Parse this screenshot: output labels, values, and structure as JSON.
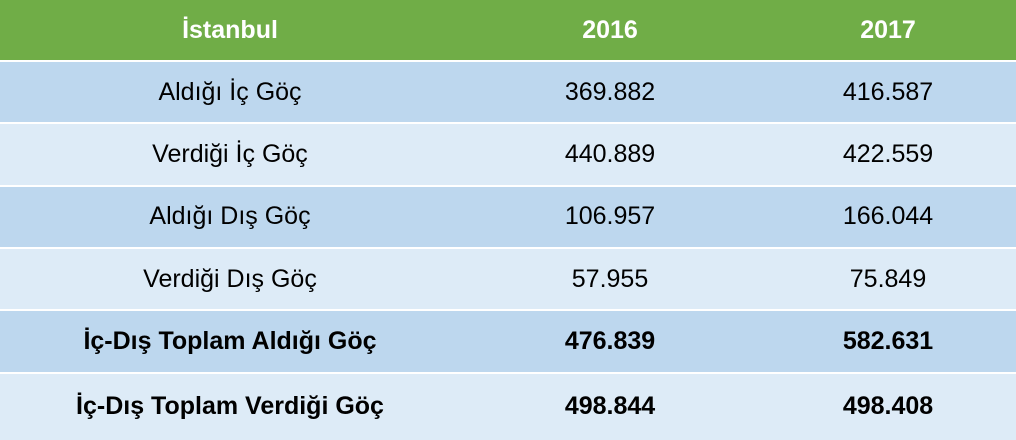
{
  "table": {
    "header": [
      "İstanbul",
      "2016",
      "2017"
    ],
    "rows": [
      [
        "Aldığı İç Göç",
        "369.882",
        "416.587"
      ],
      [
        "Verdiği İç Göç",
        "440.889",
        "422.559"
      ],
      [
        "Aldığı Dış Göç",
        "106.957",
        "166.044"
      ],
      [
        "Verdiği Dış Göç",
        "57.955",
        "75.849"
      ],
      [
        "İç-Dış Toplam Aldığı Göç",
        "476.839",
        "582.631"
      ],
      [
        "İç-Dış Toplam Verdiği Göç",
        "498.844",
        "498.408"
      ]
    ]
  }
}
